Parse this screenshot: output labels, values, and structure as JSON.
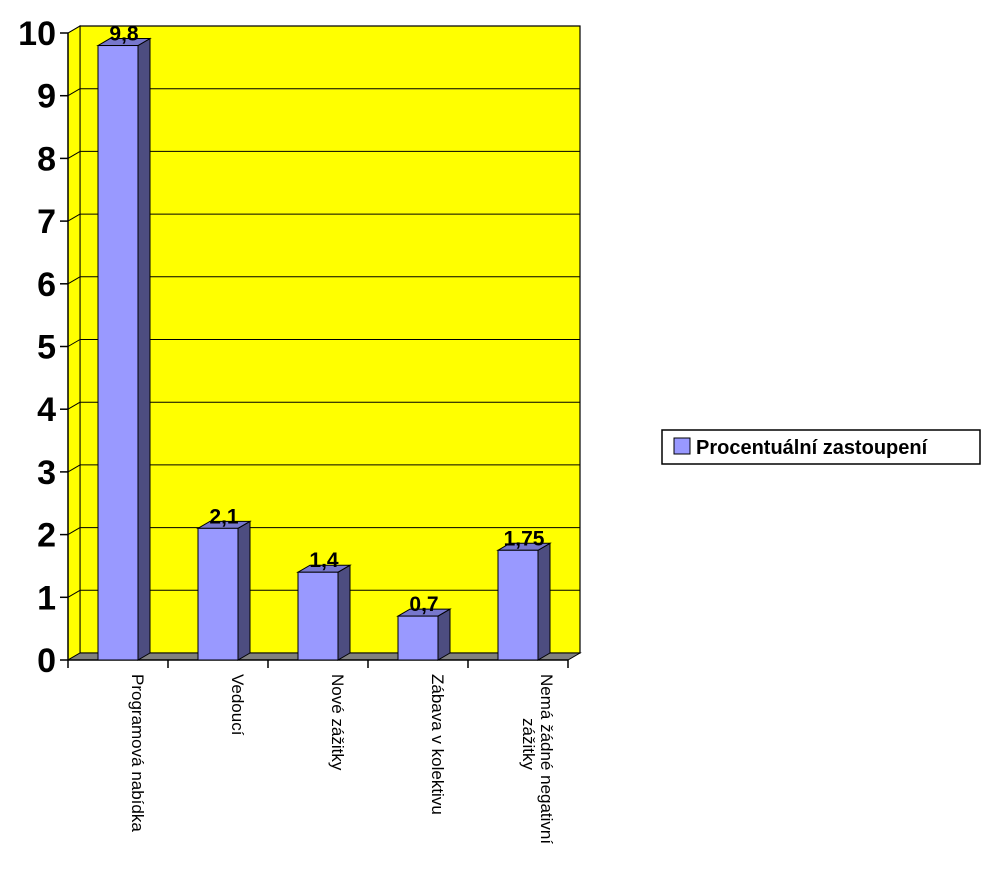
{
  "chart_data": {
    "type": "bar",
    "title": "",
    "xlabel": "",
    "ylabel": "",
    "categories": [
      "Programová nabídka",
      "Vedoucí",
      "Nové zážitky",
      "Zábava v kolektivu",
      [
        "Nemá žádné negativní",
        "zážitky"
      ]
    ],
    "series": [
      {
        "name": "Procentuální zastoupení",
        "values": [
          9.8,
          2.1,
          1.4,
          0.7,
          1.75
        ],
        "value_labels": [
          "9,8",
          "2,1",
          "1,4",
          "0,7",
          "1,75"
        ],
        "color": "#9999ff"
      }
    ],
    "ylim": [
      0,
      10
    ],
    "yticks": [
      0,
      1,
      2,
      3,
      4,
      5,
      6,
      7,
      8,
      9,
      10
    ],
    "grid": true,
    "legend_position": "right",
    "colors": {
      "plot_background": "#ffff00",
      "floor": "#808080",
      "bar_front": "#9999ff",
      "bar_side": "#4d4d80",
      "bar_top": "#7777cc",
      "gridline": "#000000"
    }
  }
}
